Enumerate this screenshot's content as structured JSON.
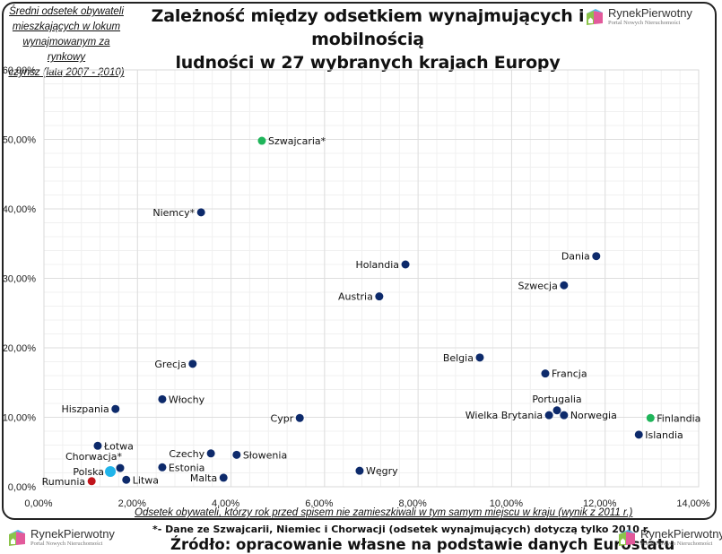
{
  "brand": {
    "name": "RynekPierwotny",
    "tagline": "Portal Nowych Nieruchomości"
  },
  "footer": {
    "note": "*- Dane ze Szwajcarii, Niemiec i Chorwacji (odsetek wynajmujących) dotyczą tylko 2010 r.",
    "source": "Źródło: opracowanie własne na podstawie danych Eurostatu"
  },
  "colors": {
    "default": "#0d2a6b",
    "highlight_green": "#1fb55a",
    "highlight_red": "#c0141b",
    "highlight_cyan": "#20b4ea"
  },
  "chart_data": {
    "type": "scatter",
    "title": "Zależność między odsetkiem wynajmujących i mobilnością ludności w 27 wybranych krajach Europy",
    "title_lines": [
      "Zależność między odsetkiem wynajmujących i mobilnością",
      "ludności w 27 wybranych krajach Europy"
    ],
    "xlabel": "Odsetek obywateli, którzy rok przed spisem nie zamieszkiwali w tym samym miejscu w kraju (wynik z 2011 r.)",
    "ylabel": "Średni odsetek obywateli mieszkających w lokum wynajmowanym za rynkowy czynsz (lata 2007 - 2010)",
    "ylabel_lines": [
      "Średni odsetek obywateli",
      "mieszkających w lokum",
      "wynajmowanym za rynkowy",
      "czynsz (lata 2007 - 2010)"
    ],
    "xlim": [
      0,
      14
    ],
    "ylim": [
      0,
      60
    ],
    "xticks": [
      0,
      2,
      4,
      6,
      8,
      10,
      12,
      14
    ],
    "yticks": [
      0,
      10,
      20,
      30,
      40,
      50,
      60
    ],
    "xtick_labels": [
      "0,00%",
      "2,00%",
      "4,00%",
      "6,00%",
      "8,00%",
      "10,00%",
      "12,00%",
      "14,00%"
    ],
    "ytick_labels": [
      "0,00%",
      "10,00%",
      "20,00%",
      "30,00%",
      "40,00%",
      "50,00%",
      "60,00%"
    ],
    "grid": true,
    "legend": "none",
    "points": [
      {
        "label": "Szwajcaria*",
        "x": 4.66,
        "y": 49.8,
        "color": "green",
        "label_side": "right"
      },
      {
        "label": "Niemcy*",
        "x": 3.36,
        "y": 39.5,
        "color": "default",
        "label_side": "left"
      },
      {
        "label": "Holandia",
        "x": 7.73,
        "y": 32.0,
        "color": "default",
        "label_side": "left"
      },
      {
        "label": "Austria",
        "x": 7.17,
        "y": 27.4,
        "color": "default",
        "label_side": "left"
      },
      {
        "label": "Dania",
        "x": 11.81,
        "y": 33.2,
        "color": "default",
        "label_side": "left"
      },
      {
        "label": "Szwecja",
        "x": 11.12,
        "y": 29.0,
        "color": "default",
        "label_side": "left"
      },
      {
        "label": "Belgia",
        "x": 9.32,
        "y": 18.6,
        "color": "default",
        "label_side": "left"
      },
      {
        "label": "Francja",
        "x": 10.72,
        "y": 16.3,
        "color": "default",
        "label_side": "right"
      },
      {
        "label": "Grecja",
        "x": 3.18,
        "y": 17.7,
        "color": "default",
        "label_side": "left"
      },
      {
        "label": "Włochy",
        "x": 2.53,
        "y": 12.6,
        "color": "default",
        "label_side": "right"
      },
      {
        "label": "Hiszpania",
        "x": 1.53,
        "y": 11.2,
        "color": "default",
        "label_side": "left"
      },
      {
        "label": "Cypr",
        "x": 5.47,
        "y": 9.9,
        "color": "default",
        "label_side": "left"
      },
      {
        "label": "Portugalia",
        "x": 10.97,
        "y": 11.0,
        "color": "default",
        "label_side": "top"
      },
      {
        "label": "Wielka Brytania",
        "x": 10.8,
        "y": 10.3,
        "color": "default",
        "label_side": "left"
      },
      {
        "label": "Norwegia",
        "x": 11.12,
        "y": 10.3,
        "color": "default",
        "label_side": "right"
      },
      {
        "label": "Finlandia",
        "x": 12.97,
        "y": 9.9,
        "color": "green",
        "label_side": "right"
      },
      {
        "label": "Islandia",
        "x": 12.72,
        "y": 7.5,
        "color": "default",
        "label_side": "right"
      },
      {
        "label": "Łotwa",
        "x": 1.15,
        "y": 5.9,
        "color": "default",
        "label_side": "right"
      },
      {
        "label": "Czechy",
        "x": 3.57,
        "y": 4.8,
        "color": "default",
        "label_side": "left"
      },
      {
        "label": "Słowenia",
        "x": 4.12,
        "y": 4.6,
        "color": "default",
        "label_side": "right"
      },
      {
        "label": "Chorwacja*",
        "x": 1.63,
        "y": 2.7,
        "color": "default",
        "label_side": "topleft"
      },
      {
        "label": "Estonia",
        "x": 2.53,
        "y": 2.8,
        "color": "default",
        "label_side": "right"
      },
      {
        "label": "Polska",
        "x": 1.42,
        "y": 2.2,
        "color": "cyan",
        "label_side": "left"
      },
      {
        "label": "Litwa",
        "x": 1.76,
        "y": 1.0,
        "color": "default",
        "label_side": "right"
      },
      {
        "label": "Malta",
        "x": 3.84,
        "y": 1.3,
        "color": "default",
        "label_side": "left"
      },
      {
        "label": "Węgry",
        "x": 6.75,
        "y": 2.3,
        "color": "default",
        "label_side": "right"
      },
      {
        "label": "Rumunia",
        "x": 1.02,
        "y": 0.8,
        "color": "red",
        "label_side": "left"
      }
    ]
  }
}
